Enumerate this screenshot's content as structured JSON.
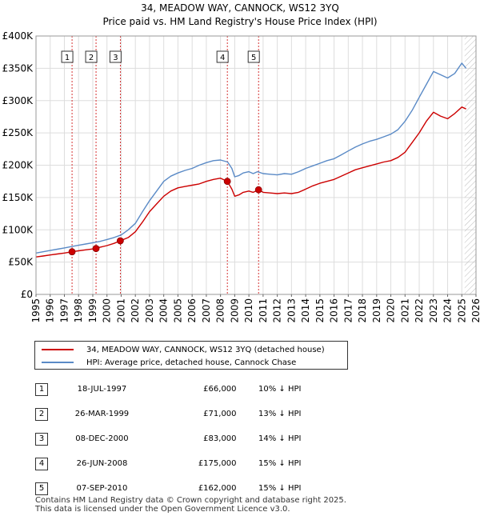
{
  "header": {
    "title": "34, MEADOW WAY, CANNOCK, WS12 3YQ",
    "subtitle": "Price paid vs. HM Land Registry's House Price Index (HPI)"
  },
  "colors": {
    "property": "#cc0000",
    "hpi": "#5a8ac6",
    "marker_line": "#cc0000",
    "hatch": "#bbbbbb"
  },
  "chart_data": {
    "type": "line",
    "title": "Price paid vs. HM Land Registry's House Price Index (HPI)",
    "xlim": [
      1995,
      2026
    ],
    "ylim": [
      0,
      400000
    ],
    "x_ticks": [
      1995,
      1996,
      1997,
      1998,
      1999,
      2000,
      2001,
      2002,
      2003,
      2004,
      2005,
      2006,
      2007,
      2008,
      2009,
      2010,
      2011,
      2012,
      2013,
      2014,
      2015,
      2016,
      2017,
      2018,
      2019,
      2020,
      2021,
      2022,
      2023,
      2024,
      2025,
      2026
    ],
    "y_ticks": [
      {
        "value": 0,
        "label": "£0"
      },
      {
        "value": 50000,
        "label": "£50K"
      },
      {
        "value": 100000,
        "label": "£100K"
      },
      {
        "value": 150000,
        "label": "£150K"
      },
      {
        "value": 200000,
        "label": "£200K"
      },
      {
        "value": 250000,
        "label": "£250K"
      },
      {
        "value": 300000,
        "label": "£300K"
      },
      {
        "value": 350000,
        "label": "£350K"
      },
      {
        "value": 400000,
        "label": "£400K"
      }
    ],
    "forecast_start": 2025.2,
    "series": [
      {
        "name": "34, MEADOW WAY, CANNOCK, WS12 3YQ (detached house)",
        "color": "#cc0000",
        "x": [
          1995.0,
          1995.5,
          1996.0,
          1996.5,
          1997.0,
          1997.54,
          1998.0,
          1998.5,
          1999.23,
          1999.5,
          2000.0,
          2000.5,
          2000.94,
          2001.5,
          2002.0,
          2002.5,
          2003.0,
          2003.5,
          2004.0,
          2004.5,
          2005.0,
          2005.5,
          2006.0,
          2006.5,
          2007.0,
          2007.5,
          2008.0,
          2008.48,
          2008.8,
          2009.0,
          2009.3,
          2009.6,
          2010.0,
          2010.3,
          2010.68,
          2011.0,
          2011.5,
          2012.0,
          2012.5,
          2013.0,
          2013.5,
          2014.0,
          2014.5,
          2015.0,
          2015.5,
          2016.0,
          2016.5,
          2017.0,
          2017.5,
          2018.0,
          2018.5,
          2019.0,
          2019.5,
          2020.0,
          2020.5,
          2021.0,
          2021.5,
          2022.0,
          2022.5,
          2023.0,
          2023.5,
          2024.0,
          2024.5,
          2025.0,
          2025.3
        ],
        "values": [
          58000,
          59500,
          61000,
          62500,
          64000,
          66000,
          67500,
          69000,
          71000,
          73000,
          75500,
          79000,
          83000,
          88000,
          97000,
          112000,
          128000,
          140000,
          152000,
          160000,
          165000,
          167000,
          169000,
          171000,
          175000,
          178000,
          180000,
          175000,
          163000,
          152000,
          154000,
          158000,
          160000,
          158000,
          162000,
          158000,
          157000,
          156000,
          157000,
          156000,
          158000,
          163000,
          168000,
          172000,
          175000,
          178000,
          183000,
          188000,
          193000,
          196000,
          199000,
          202000,
          205000,
          207000,
          212000,
          220000,
          235000,
          250000,
          268000,
          282000,
          276000,
          272000,
          280000,
          290000,
          287000
        ]
      },
      {
        "name": "HPI: Average price, detached house, Cannock Chase",
        "color": "#5a8ac6",
        "x": [
          1995.0,
          1995.5,
          1996.0,
          1996.5,
          1997.0,
          1997.5,
          1998.0,
          1998.5,
          1999.0,
          1999.5,
          2000.0,
          2000.5,
          2001.0,
          2001.5,
          2002.0,
          2002.5,
          2003.0,
          2003.5,
          2004.0,
          2004.5,
          2005.0,
          2005.5,
          2006.0,
          2006.5,
          2007.0,
          2007.5,
          2008.0,
          2008.5,
          2008.8,
          2009.0,
          2009.3,
          2009.6,
          2010.0,
          2010.3,
          2010.6,
          2011.0,
          2011.5,
          2012.0,
          2012.5,
          2013.0,
          2013.5,
          2014.0,
          2014.5,
          2015.0,
          2015.5,
          2016.0,
          2016.5,
          2017.0,
          2017.5,
          2018.0,
          2018.5,
          2019.0,
          2019.5,
          2020.0,
          2020.5,
          2021.0,
          2021.5,
          2022.0,
          2022.5,
          2023.0,
          2023.5,
          2024.0,
          2024.5,
          2025.0,
          2025.3
        ],
        "values": [
          64000,
          66000,
          68000,
          70000,
          72000,
          74000,
          76000,
          78000,
          80000,
          82000,
          85000,
          88000,
          92000,
          100000,
          110000,
          128000,
          145000,
          160000,
          175000,
          183000,
          188000,
          192000,
          195000,
          200000,
          204000,
          207000,
          208000,
          205000,
          195000,
          182000,
          184000,
          188000,
          190000,
          187000,
          190000,
          187000,
          186000,
          185000,
          187000,
          186000,
          190000,
          195000,
          199000,
          203000,
          207000,
          210000,
          216000,
          222000,
          228000,
          233000,
          237000,
          240000,
          244000,
          248000,
          255000,
          268000,
          285000,
          305000,
          325000,
          345000,
          340000,
          335000,
          342000,
          358000,
          350000
        ]
      }
    ],
    "sales": [
      {
        "num": "1",
        "x": 1997.54,
        "value": 66000
      },
      {
        "num": "2",
        "x": 1999.23,
        "value": 71000
      },
      {
        "num": "3",
        "x": 2000.94,
        "value": 83000
      },
      {
        "num": "4",
        "x": 2008.48,
        "value": 175000
      },
      {
        "num": "5",
        "x": 2010.68,
        "value": 162000
      }
    ]
  },
  "legend": {
    "property_label": "34, MEADOW WAY, CANNOCK, WS12 3YQ (detached house)",
    "hpi_label": "HPI: Average price, detached house, Cannock Chase"
  },
  "table": {
    "rows": [
      {
        "num": "1",
        "date": "18-JUL-1997",
        "price": "£66,000",
        "hpi": "10% ↓ HPI"
      },
      {
        "num": "2",
        "date": "26-MAR-1999",
        "price": "£71,000",
        "hpi": "13% ↓ HPI"
      },
      {
        "num": "3",
        "date": "08-DEC-2000",
        "price": "£83,000",
        "hpi": "14% ↓ HPI"
      },
      {
        "num": "4",
        "date": "26-JUN-2008",
        "price": "£175,000",
        "hpi": "15% ↓ HPI"
      },
      {
        "num": "5",
        "date": "07-SEP-2010",
        "price": "£162,000",
        "hpi": "15% ↓ HPI"
      }
    ]
  },
  "footer": {
    "line1": "Contains HM Land Registry data © Crown copyright and database right 2025.",
    "line2": "This data is licensed under the Open Government Licence v3.0."
  }
}
